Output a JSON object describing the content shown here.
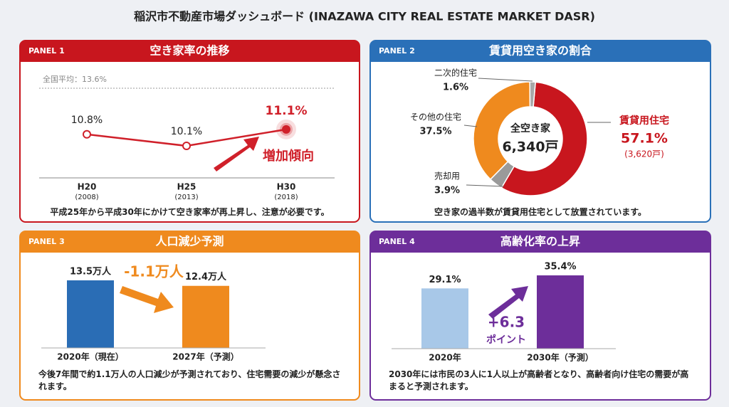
{
  "title": "稲沢市不動産市場ダッシュボード (INAZAWA CITY REAL ESTATE MARKET DASR)",
  "chart_data": [
    {
      "type": "line",
      "panel": "PANEL 1",
      "title": "空き家率の推移",
      "theme_color": "#c8161e",
      "categories": [
        "H20",
        "H25",
        "H30"
      ],
      "category_sublabels": [
        "(2008)",
        "(2013)",
        "(2018)"
      ],
      "values": [
        10.8,
        10.1,
        11.1
      ],
      "value_labels": [
        "10.8%",
        "10.1%",
        "11.1%"
      ],
      "color": "#d0202a",
      "reference": {
        "value": 13.6,
        "label": "全国平均：13.6%"
      },
      "annotation": "増加傾向",
      "caption": "平成25年から平成30年にかけて空き家率が再上昇し、注意が必要です。"
    },
    {
      "type": "donut",
      "panel": "PANEL 2",
      "title": "賃貸用空き家の割合",
      "theme_color": "#2a70b8",
      "categories": [
        "賃貸用住宅",
        "売却用",
        "その他の住宅",
        "二次的住宅"
      ],
      "values": [
        57.1,
        3.9,
        37.5,
        1.6
      ],
      "value_labels": [
        "57.1%",
        "3.9%",
        "37.5%",
        "1.6%"
      ],
      "colors": [
        "#c8161e",
        "#9a9a9a",
        "#ef8a1e",
        "#a8a8a8"
      ],
      "center_label": "全空き家",
      "center_value": "6,340戸",
      "sub_annotation": "(3,620戸)",
      "caption": "空き家の過半数が賃貸用住宅として放置されています。"
    },
    {
      "type": "bar",
      "panel": "PANEL 3",
      "title": "人口減少予測",
      "theme_color": "#ef8a1e",
      "categories": [
        "2020年（現在）",
        "2027年（予測）"
      ],
      "values": [
        13.5,
        12.4
      ],
      "value_labels": [
        "13.5万人",
        "12.4万人"
      ],
      "colors": [
        "#2a6db5",
        "#ef8a1e"
      ],
      "annotation": "-1.1万人",
      "caption": "今後7年間で約1.1万人の人口減少が予測されており、住宅需要の減少が懸念されます。"
    },
    {
      "type": "bar",
      "panel": "PANEL 4",
      "title": "高齢化率の上昇",
      "theme_color": "#6d2e9a",
      "categories": [
        "2020年",
        "2030年（予測）"
      ],
      "values": [
        29.1,
        35.4
      ],
      "value_labels": [
        "29.1%",
        "35.4%"
      ],
      "colors": [
        "#a8c8e8",
        "#6d2e9a"
      ],
      "annotation": "+6.3",
      "annotation_sub": "ポイント",
      "caption": "2030年には市民の3人に1人以上が高齢者となり、高齢者向け住宅の需要が高まると予測されます。"
    }
  ]
}
